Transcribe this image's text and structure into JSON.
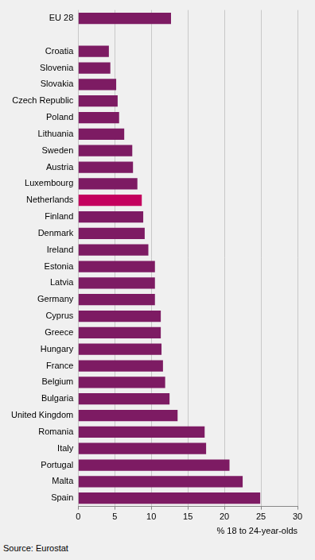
{
  "chart_data": {
    "type": "bar",
    "orientation": "horizontal",
    "categories": [
      "EU 28",
      null,
      "Croatia",
      "Slovenia",
      "Slovakia",
      "Czech Republic",
      "Poland",
      "Lithuania",
      "Sweden",
      "Austria",
      "Luxembourg",
      "Netherlands",
      "Finland",
      "Denmark",
      "Ireland",
      "Estonia",
      "Latvia",
      "Germany",
      "Cyprus",
      "Greece",
      "Hungary",
      "France",
      "Belgium",
      "Bulgaria",
      "United Kingdom",
      "Romania",
      "Italy",
      "Portugal",
      "Malta",
      "Spain"
    ],
    "values": [
      12.7,
      null,
      4.2,
      4.4,
      5.2,
      5.4,
      5.6,
      6.3,
      7.4,
      7.5,
      8.1,
      8.7,
      8.9,
      9.1,
      9.6,
      10.5,
      10.5,
      10.5,
      11.3,
      11.3,
      11.4,
      11.6,
      11.9,
      12.5,
      13.6,
      17.3,
      17.5,
      20.7,
      22.5,
      24.9
    ],
    "colors": [
      "#7d1b63",
      "#7d1b63",
      "#7d1b63",
      "#7d1b63",
      "#7d1b63",
      "#7d1b63",
      "#7d1b63",
      "#7d1b63",
      "#7d1b63",
      "#7d1b63",
      "#7d1b63",
      "#c4005e",
      "#7d1b63",
      "#7d1b63",
      "#7d1b63",
      "#7d1b63",
      "#7d1b63",
      "#7d1b63",
      "#7d1b63",
      "#7d1b63",
      "#7d1b63",
      "#7d1b63",
      "#7d1b63",
      "#7d1b63",
      "#7d1b63",
      "#7d1b63",
      "#7d1b63",
      "#7d1b63",
      "#7d1b63",
      "#7d1b63"
    ],
    "x_label": "% 18 to 24-year-olds",
    "xlim": [
      0,
      30
    ],
    "xticks": [
      0,
      5,
      10,
      15,
      20,
      25,
      30
    ],
    "grid": true,
    "source": "Source: Eurostat"
  }
}
